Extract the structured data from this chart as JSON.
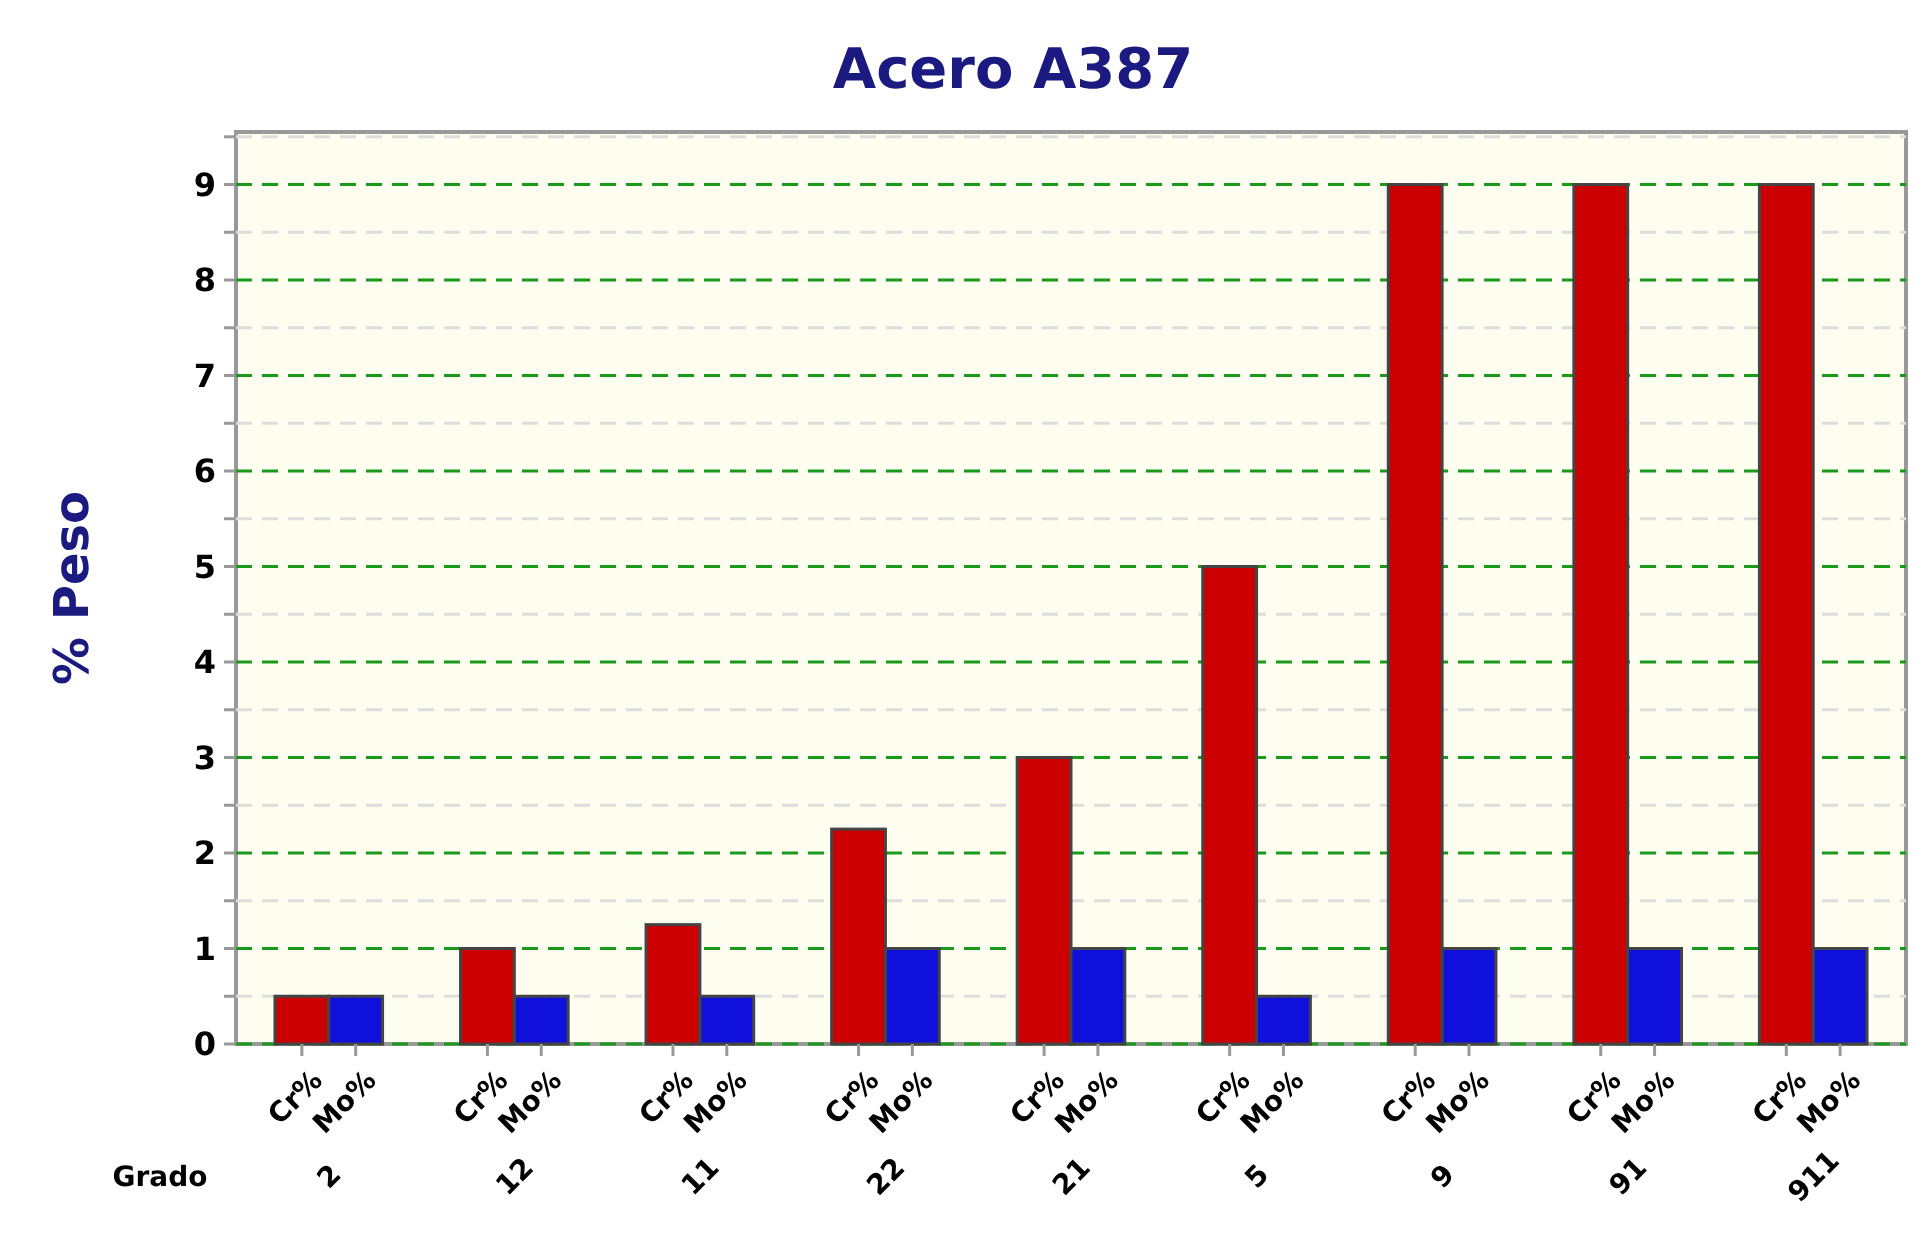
{
  "chart_data": {
    "type": "bar",
    "title": "Acero A387",
    "xlabel": "Grado",
    "ylabel": "% Peso",
    "categories": [
      "2",
      "12",
      "11",
      "22",
      "21",
      "5",
      "9",
      "91",
      "911"
    ],
    "series": [
      {
        "name": "Cr%",
        "color": "#cc0000",
        "values": [
          0.5,
          1,
          1.25,
          2.25,
          3,
          5,
          9,
          9,
          9
        ]
      },
      {
        "name": "Mo%",
        "color": "#1010dd",
        "values": [
          0.5,
          0.5,
          0.5,
          1,
          1,
          0.5,
          1,
          1,
          1
        ]
      }
    ],
    "ylim": [
      0,
      9.55
    ],
    "yticks": [
      0,
      {
        "value": 0.5,
        "label": null
      },
      1,
      {
        "value": 1.5,
        "label": null
      },
      2,
      {
        "value": 2.5,
        "label": null
      },
      3,
      {
        "value": 3.5,
        "label": null
      },
      4,
      {
        "value": 4.5,
        "label": null
      },
      5,
      {
        "value": 5.5,
        "label": null
      },
      6,
      {
        "value": 6.5,
        "label": null
      },
      7,
      {
        "value": 7.5,
        "label": null
      },
      8,
      {
        "value": 8.5,
        "label": null
      },
      9,
      {
        "value": 9.5,
        "label": null
      }
    ],
    "grid": "y"
  }
}
